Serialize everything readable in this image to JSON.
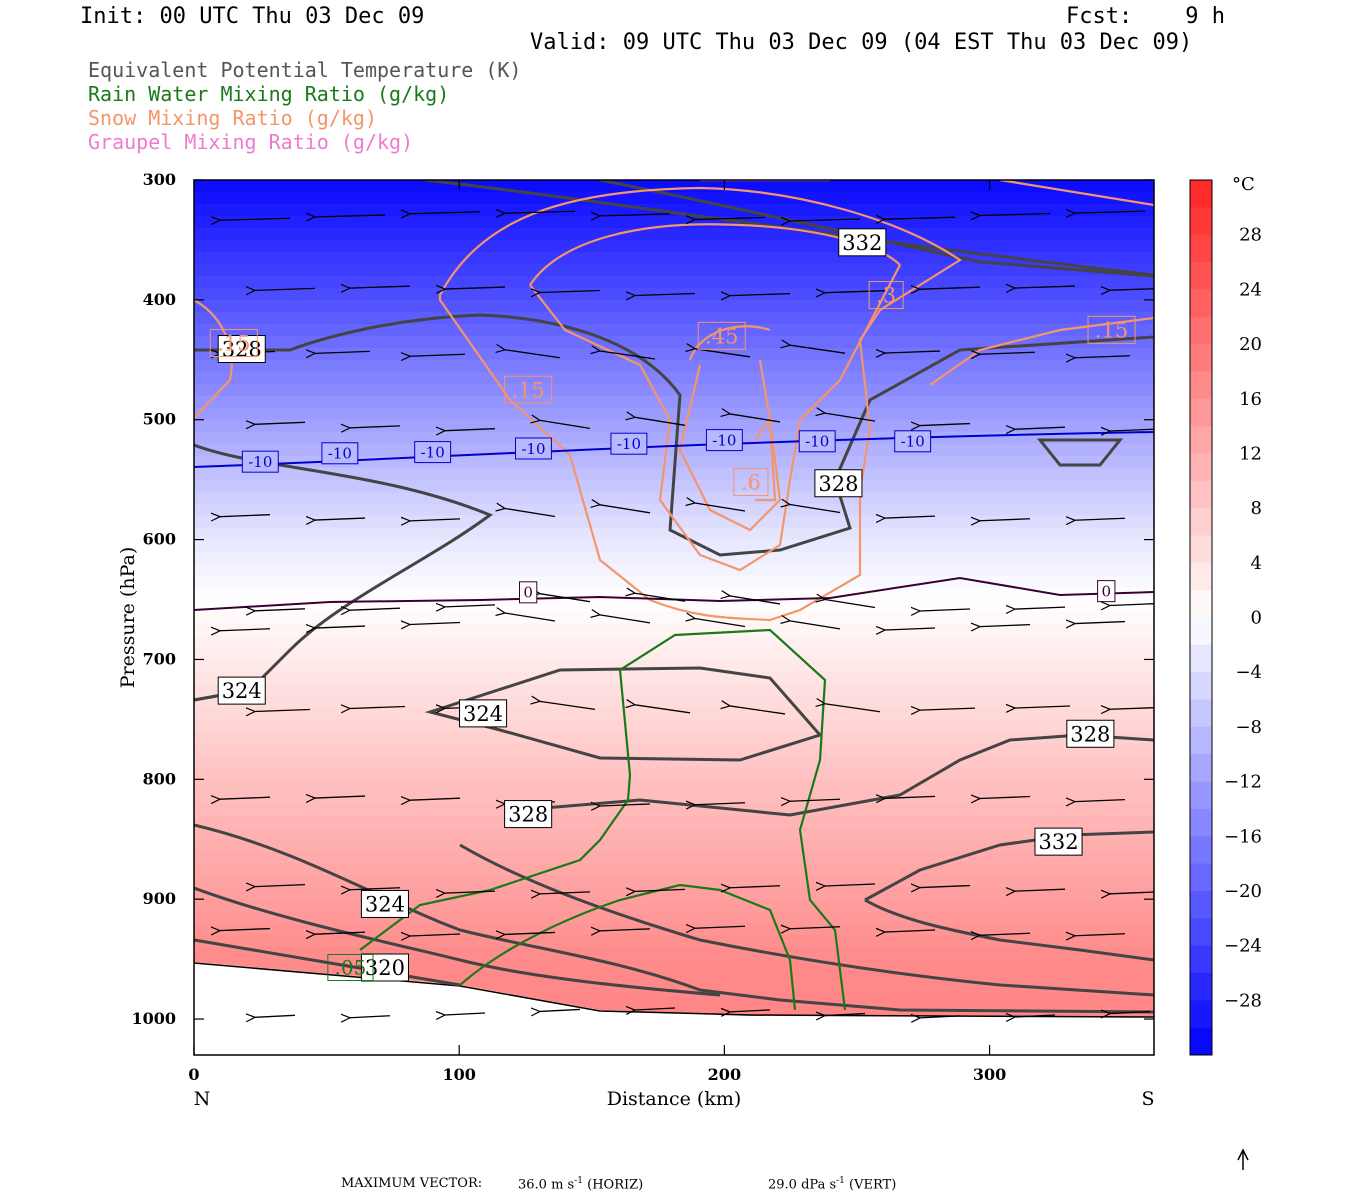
{
  "header": {
    "init": "Init: 00 UTC Thu 03 Dec 09",
    "fcst": "Fcst:    9 h",
    "valid": "Valid: 09 UTC Thu 03 Dec 09 (04 EST Thu 03 Dec 09)"
  },
  "legend": [
    {
      "label": "Equivalent Potential Temperature (K)",
      "color": "#555555"
    },
    {
      "label": "Rain Water Mixing Ratio (g/kg)",
      "color": "#1a7a1a"
    },
    {
      "label": "Snow Mixing Ratio (g/kg)",
      "color": "#f4956a"
    },
    {
      "label": "Graupel Mixing Ratio (g/kg)",
      "color": "#f07ad0"
    }
  ],
  "chart_data": {
    "type": "cross-section",
    "xlabel": "Distance (km)",
    "ylabel": "Pressure (hPa)",
    "xlim": [
      0,
      362
    ],
    "ylim": [
      1030,
      300
    ],
    "x_ticks": [
      0,
      100,
      200,
      300
    ],
    "y_ticks": [
      300,
      400,
      500,
      600,
      700,
      800,
      900,
      1000
    ],
    "x_end_labels": {
      "left": "N",
      "right": "S"
    },
    "colorbar": {
      "unit": "°C",
      "ticks": [
        28,
        24,
        20,
        16,
        12,
        8,
        4,
        0,
        -4,
        -8,
        -12,
        -16,
        -20,
        -24,
        -28
      ],
      "range": [
        -32,
        32
      ]
    },
    "temperature_isotherm_labels": [
      {
        "value": "-10",
        "x": 25,
        "p": 535
      },
      {
        "value": "-10",
        "x": 55,
        "p": 528
      },
      {
        "value": "-10",
        "x": 90,
        "p": 527
      },
      {
        "value": "-10",
        "x": 128,
        "p": 524
      },
      {
        "value": "-10",
        "x": 164,
        "p": 520
      },
      {
        "value": "-10",
        "x": 200,
        "p": 517
      },
      {
        "value": "-10",
        "x": 235,
        "p": 518
      },
      {
        "value": "-10",
        "x": 271,
        "p": 518
      },
      {
        "value": "0",
        "x": 126,
        "p": 644
      },
      {
        "value": "0",
        "x": 344,
        "p": 643
      }
    ],
    "theta_e_labels": [
      {
        "value": "332",
        "x": 252,
        "p": 352
      },
      {
        "value": "328",
        "x": 18,
        "p": 441
      },
      {
        "value": "328",
        "x": 243,
        "p": 553
      },
      {
        "value": "324",
        "x": 18,
        "p": 726
      },
      {
        "value": "324",
        "x": 109,
        "p": 745
      },
      {
        "value": "328",
        "x": 338,
        "p": 762
      },
      {
        "value": "328",
        "x": 126,
        "p": 829
      },
      {
        "value": "332",
        "x": 326,
        "p": 852
      },
      {
        "value": "324",
        "x": 72,
        "p": 904
      },
      {
        "value": "320",
        "x": 72,
        "p": 957
      }
    ],
    "snow_labels": [
      {
        "value": ".3",
        "x": 261,
        "p": 396
      },
      {
        "value": ".15",
        "x": 15,
        "p": 436
      },
      {
        "value": ".45",
        "x": 199,
        "p": 430
      },
      {
        "value": ".15",
        "x": 126,
        "p": 475
      },
      {
        "value": ".6",
        "x": 210,
        "p": 552
      },
      {
        "value": ".15",
        "x": 346,
        "p": 425
      }
    ],
    "rain_labels": [
      {
        "value": ".05",
        "x": 59,
        "p": 957
      }
    ]
  },
  "footer": {
    "max_vector": "MAXIMUM VECTOR:",
    "horiz": "36.0 m s",
    "horiz_tail": " (HORIZ)",
    "vert": "29.0 dPa s",
    "vert_tail": " (VERT)",
    "sup": "-1"
  }
}
